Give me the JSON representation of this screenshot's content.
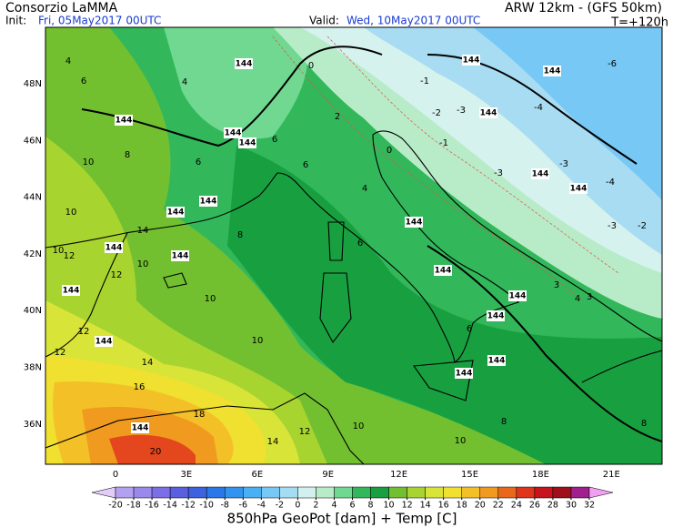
{
  "header": {
    "title": "Consorzio LaMMA",
    "model": "ARW 12km - (GFS 50km)",
    "init_label": "Init:",
    "init": "Fri, 05May2017 00UTC",
    "valid_label": "Valid:",
    "valid": "Wed, 10May2017 00UTC",
    "lead": "T=+120h"
  },
  "map": {
    "lat_labels": [
      "48N",
      "46N",
      "44N",
      "42N",
      "40N",
      "38N",
      "36N"
    ],
    "lon_labels": [
      "0",
      "3E",
      "6E",
      "9E",
      "12E",
      "15E",
      "18E",
      "21E"
    ],
    "contour_labels": [
      "4",
      "6",
      "4",
      "144",
      "0",
      "144",
      "-6",
      "144",
      "-1",
      "144",
      "2",
      "-2",
      "-3",
      "144",
      "-4",
      "144",
      "144",
      "6",
      "0",
      "-1",
      "8",
      "10",
      "6",
      "6",
      "144",
      "-3",
      "-4",
      "144",
      "4",
      "-3",
      "144",
      "10",
      "144",
      "14",
      "8",
      "144",
      "-3",
      "-2",
      "10",
      "12",
      "144",
      "144",
      "6",
      "144",
      "10",
      "12",
      "144",
      "144",
      "3",
      "4",
      "3",
      "10",
      "12",
      "144",
      "10",
      "6",
      "144",
      "12",
      "14",
      "144",
      "144",
      "16",
      "18",
      "144",
      "12",
      "10",
      "8",
      "8",
      "14",
      "10",
      "20"
    ]
  },
  "colorbar": {
    "levels": [
      -20,
      -18,
      -16,
      -14,
      -12,
      -10,
      -8,
      -6,
      -4,
      -2,
      0,
      2,
      4,
      6,
      8,
      10,
      12,
      14,
      16,
      18,
      20,
      22,
      24,
      26,
      28,
      30,
      32
    ],
    "colors": [
      "#e2ccf8",
      "#b4a0f0",
      "#9a88ec",
      "#7c6ee6",
      "#5a5ee0",
      "#3c62e0",
      "#2a78e8",
      "#3294f0",
      "#4ab0f4",
      "#78c8f6",
      "#a4dcf4",
      "#d2f0f0",
      "#b8ecc8",
      "#70d890",
      "#32b85a",
      "#18a040",
      "#72c030",
      "#a8d430",
      "#d8e438",
      "#f0e030",
      "#f4c028",
      "#f09a20",
      "#e8681c",
      "#e0341c",
      "#c8141c",
      "#a0101c",
      "#a02090",
      "#f0a0f0"
    ]
  },
  "caption": "850hPa GeoPot [dam] + Temp [C]"
}
